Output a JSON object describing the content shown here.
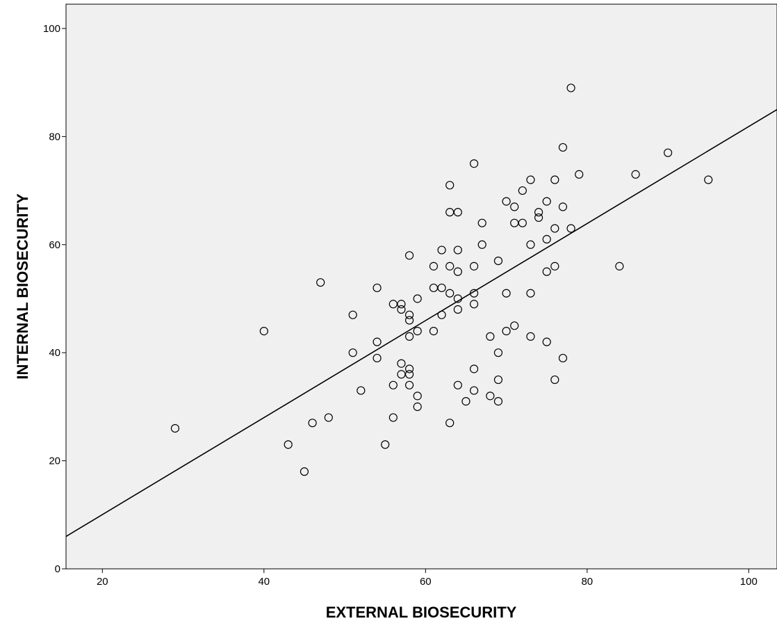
{
  "chart_data": {
    "type": "scatter",
    "title": "",
    "xlabel": "EXTERNAL BIOSECURITY",
    "ylabel": "INTERNAL BIOSECURITY",
    "xlim": [
      15.5,
      103.5
    ],
    "ylim": [
      0,
      104.5
    ],
    "xticks": [
      20,
      40,
      60,
      80,
      100
    ],
    "yticks": [
      0,
      20,
      40,
      60,
      80,
      100
    ],
    "grid": false,
    "legend": "none",
    "plot_background": "#f0f0f0",
    "marker_color": "#000000",
    "fit_line": {
      "x": [
        15.5,
        103.5
      ],
      "y": [
        6,
        85
      ]
    },
    "points": [
      [
        29,
        26
      ],
      [
        40,
        44
      ],
      [
        43,
        23
      ],
      [
        45,
        18
      ],
      [
        46,
        27
      ],
      [
        47,
        53
      ],
      [
        48,
        28
      ],
      [
        51,
        47
      ],
      [
        51,
        40
      ],
      [
        52,
        33
      ],
      [
        54,
        52
      ],
      [
        54,
        42
      ],
      [
        54,
        39
      ],
      [
        55,
        23
      ],
      [
        56,
        49
      ],
      [
        56,
        34
      ],
      [
        56,
        28
      ],
      [
        57,
        49
      ],
      [
        57,
        48
      ],
      [
        57,
        38
      ],
      [
        57,
        36
      ],
      [
        58,
        58
      ],
      [
        58,
        47
      ],
      [
        58,
        46
      ],
      [
        58,
        43
      ],
      [
        58,
        37
      ],
      [
        58,
        36
      ],
      [
        58,
        34
      ],
      [
        59,
        50
      ],
      [
        59,
        44
      ],
      [
        59,
        32
      ],
      [
        59,
        30
      ],
      [
        61,
        56
      ],
      [
        61,
        52
      ],
      [
        61,
        44
      ],
      [
        62,
        59
      ],
      [
        62,
        52
      ],
      [
        62,
        47
      ],
      [
        63,
        71
      ],
      [
        63,
        66
      ],
      [
        63,
        56
      ],
      [
        63,
        51
      ],
      [
        63,
        27
      ],
      [
        64,
        66
      ],
      [
        64,
        59
      ],
      [
        64,
        55
      ],
      [
        64,
        50
      ],
      [
        64,
        48
      ],
      [
        64,
        34
      ],
      [
        65,
        31
      ],
      [
        66,
        75
      ],
      [
        66,
        56
      ],
      [
        66,
        51
      ],
      [
        66,
        49
      ],
      [
        66,
        37
      ],
      [
        66,
        33
      ],
      [
        67,
        64
      ],
      [
        67,
        60
      ],
      [
        68,
        43
      ],
      [
        68,
        32
      ],
      [
        69,
        57
      ],
      [
        69,
        40
      ],
      [
        69,
        35
      ],
      [
        69,
        31
      ],
      [
        70,
        68
      ],
      [
        70,
        51
      ],
      [
        70,
        44
      ],
      [
        71,
        67
      ],
      [
        71,
        64
      ],
      [
        71,
        45
      ],
      [
        72,
        70
      ],
      [
        72,
        64
      ],
      [
        73,
        72
      ],
      [
        73,
        60
      ],
      [
        73,
        51
      ],
      [
        73,
        43
      ],
      [
        74,
        66
      ],
      [
        74,
        65
      ],
      [
        75,
        68
      ],
      [
        75,
        61
      ],
      [
        75,
        55
      ],
      [
        75,
        42
      ],
      [
        76,
        72
      ],
      [
        76,
        63
      ],
      [
        76,
        56
      ],
      [
        76,
        35
      ],
      [
        77,
        78
      ],
      [
        77,
        67
      ],
      [
        77,
        39
      ],
      [
        78,
        89
      ],
      [
        78,
        63
      ],
      [
        79,
        73
      ],
      [
        84,
        56
      ],
      [
        86,
        73
      ],
      [
        90,
        77
      ],
      [
        95,
        72
      ]
    ]
  }
}
